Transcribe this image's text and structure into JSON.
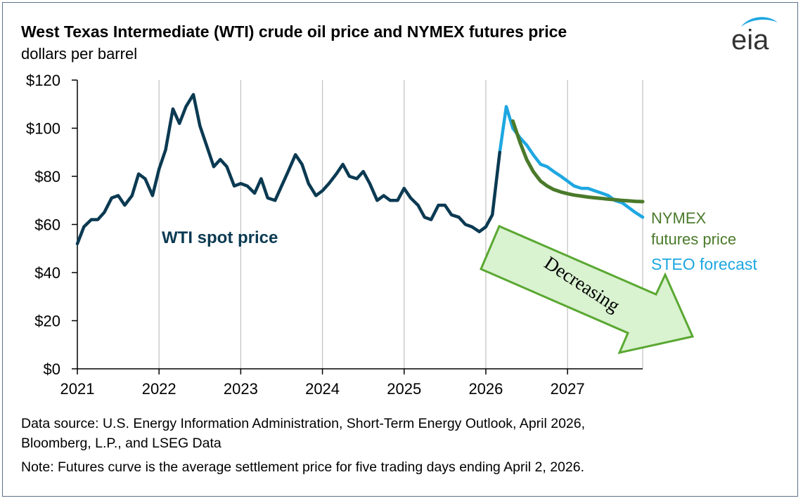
{
  "header": {
    "title": "West Texas Intermediate (WTI) crude oil price and NYMEX futures price",
    "subtitle": "dollars per barrel",
    "logo_text": "eia"
  },
  "footer": {
    "source_line1": "Data source: U.S. Energy Information Administration, Short-Term Energy Outlook, April 2026,",
    "source_line2": "Bloomberg, L.P., and LSEG Data",
    "note": "Note: Futures curve is the average settlement price for five trading days ending April 2, 2026."
  },
  "annotation": {
    "arrow_text": "Decreasing",
    "arrow_fill": "#d9f2d0",
    "arrow_stroke": "#5aa832"
  },
  "colors": {
    "spot": "#0b3a52",
    "steo": "#1ea7e1",
    "nymex": "#4a7a2a",
    "grid": "#c0c0c0"
  },
  "chart_data": {
    "type": "line",
    "title": "West Texas Intermediate (WTI) crude oil price and NYMEX futures price",
    "ylabel": "dollars per barrel",
    "ylim": [
      0,
      120
    ],
    "xlim": [
      2021,
      2027.92
    ],
    "y_ticks": [
      0,
      20,
      40,
      60,
      80,
      100,
      120
    ],
    "y_tick_labels": [
      "$0",
      "$20",
      "$40",
      "$60",
      "$80",
      "$100",
      "$120"
    ],
    "x_ticks": [
      2021,
      2022,
      2023,
      2024,
      2025,
      2026,
      2027
    ],
    "x_tick_labels": [
      "2021",
      "2022",
      "2023",
      "2024",
      "2025",
      "2026",
      "2027"
    ],
    "grid": "vertical",
    "series": [
      {
        "name": "WTI spot price",
        "color": "#0b3a52",
        "x": [
          2021.0,
          2021.08,
          2021.17,
          2021.25,
          2021.33,
          2021.42,
          2021.5,
          2021.58,
          2021.67,
          2021.75,
          2021.83,
          2021.92,
          2022.0,
          2022.08,
          2022.17,
          2022.25,
          2022.33,
          2022.42,
          2022.5,
          2022.58,
          2022.67,
          2022.75,
          2022.83,
          2022.92,
          2023.0,
          2023.08,
          2023.17,
          2023.25,
          2023.33,
          2023.42,
          2023.5,
          2023.58,
          2023.67,
          2023.75,
          2023.83,
          2023.92,
          2024.0,
          2024.08,
          2024.17,
          2024.25,
          2024.33,
          2024.42,
          2024.5,
          2024.58,
          2024.67,
          2024.75,
          2024.83,
          2024.92,
          2025.0,
          2025.08,
          2025.17,
          2025.25,
          2025.33,
          2025.42,
          2025.5,
          2025.58,
          2025.67,
          2025.75,
          2025.83,
          2025.92,
          2026.0,
          2026.08,
          2026.17
        ],
        "y": [
          52,
          59,
          62,
          62,
          65,
          71,
          72,
          68,
          72,
          81,
          79,
          72,
          83,
          91,
          108,
          102,
          109,
          114,
          101,
          93,
          84,
          87,
          84,
          76,
          77,
          76,
          73,
          79,
          71,
          70,
          76,
          82,
          89,
          85,
          77,
          72,
          74,
          77,
          81,
          85,
          80,
          79,
          82,
          77,
          70,
          72,
          70,
          70,
          75,
          71,
          68,
          63,
          62,
          68,
          68,
          64,
          63,
          60,
          59,
          57,
          59,
          64,
          90
        ]
      },
      {
        "name": "STEO forecast",
        "color": "#1ea7e1",
        "x": [
          2026.17,
          2026.25,
          2026.33,
          2026.42,
          2026.5,
          2026.58,
          2026.67,
          2026.75,
          2026.83,
          2026.92,
          2027.0,
          2027.08,
          2027.17,
          2027.25,
          2027.33,
          2027.42,
          2027.5,
          2027.58,
          2027.67,
          2027.75,
          2027.83,
          2027.92
        ],
        "y": [
          90,
          109,
          100,
          96,
          93,
          89,
          85,
          84,
          82,
          80,
          78,
          76,
          75,
          75,
          74,
          73,
          72,
          70,
          69,
          67,
          65,
          63
        ]
      },
      {
        "name": "NYMEX futures price",
        "color": "#4a7a2a",
        "x": [
          2026.33,
          2026.42,
          2026.5,
          2026.58,
          2026.67,
          2026.75,
          2026.83,
          2026.92,
          2027.0,
          2027.08,
          2027.17,
          2027.25,
          2027.33,
          2027.42,
          2027.5,
          2027.58,
          2027.67,
          2027.75,
          2027.83,
          2027.92
        ],
        "y": [
          103,
          94,
          87,
          82,
          78,
          76,
          74.5,
          73.5,
          72.8,
          72.2,
          71.8,
          71.4,
          71.1,
          70.8,
          70.5,
          70.3,
          70.0,
          69.8,
          69.6,
          69.5
        ]
      }
    ],
    "series_labels": {
      "spot": "WTI spot price",
      "nymex_line1": "NYMEX",
      "nymex_line2": "futures price",
      "steo": "STEO forecast"
    }
  }
}
